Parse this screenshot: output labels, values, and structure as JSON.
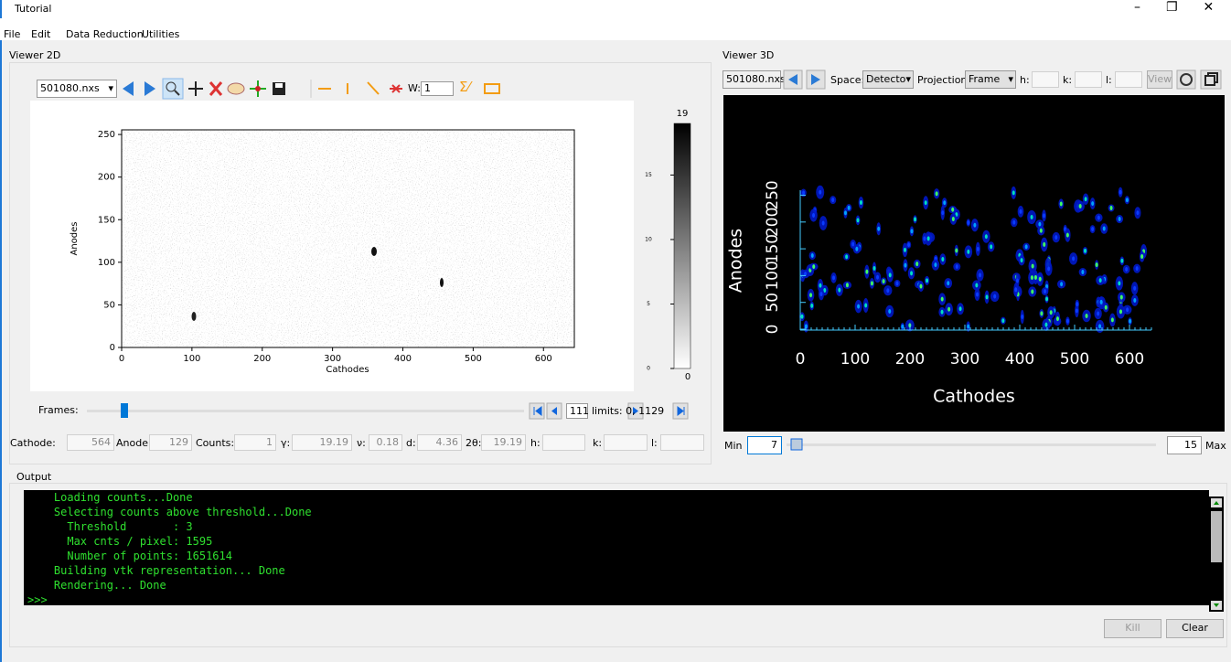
{
  "window": {
    "title": "Tutorial"
  },
  "menu": [
    "File",
    "Edit",
    "Data Reduction",
    "Utilities"
  ],
  "viewer2d": {
    "title": "Viewer 2D",
    "file": "501080.nxs",
    "width_label": "W:",
    "width_value": "1",
    "plot": {
      "xlabel": "Cathodes",
      "ylabel": "Anodes",
      "xlim": [
        0,
        640
      ],
      "ylim": [
        0,
        256
      ],
      "xticks": [
        0,
        100,
        200,
        300,
        400,
        500,
        600
      ],
      "yticks": [
        0,
        50,
        100,
        150,
        200,
        250
      ],
      "colorbar": {
        "min": 0,
        "max": 19,
        "ticks": [
          0,
          5,
          10,
          15
        ]
      }
    },
    "frames_label": "Frames:",
    "frame": "111",
    "limits": "limits: 0, 1129",
    "status": [
      {
        "label": "Cathode:",
        "value": "564"
      },
      {
        "label": "Anode:",
        "value": "129"
      },
      {
        "label": "Counts:",
        "value": "1"
      },
      {
        "label": "γ:",
        "value": "19.19"
      },
      {
        "label": "ν:",
        "value": "0.18"
      },
      {
        "label": "d:",
        "value": "4.36"
      },
      {
        "label": "2θ:",
        "value": "19.19"
      },
      {
        "label": "h:"
      },
      {
        "label": "k:"
      },
      {
        "label": "l:"
      }
    ]
  },
  "viewer3d": {
    "title": "Viewer 3D",
    "file": "501080.nxs",
    "space_label": "Space:",
    "space": "Detector",
    "projection_label": "Projection:",
    "projection": "Frame",
    "h_label": "h:",
    "k_label": "k:",
    "l_label": "l:",
    "view": "View",
    "plot": {
      "xlabel": "Cathodes",
      "ylabel": "Anodes",
      "xlim": [
        0,
        640
      ],
      "ylim": [
        0,
        256
      ],
      "xticks": [
        0,
        100,
        200,
        300,
        400,
        500,
        600
      ],
      "yticks": [
        0,
        50,
        100,
        150,
        200,
        250
      ]
    },
    "min_label": "Min",
    "min": "7",
    "max": "15",
    "max_label": "Max"
  },
  "output": {
    "title": "Output",
    "lines": [
      "    Loading counts...Done",
      "    Selecting counts above threshold...Done",
      "      Threshold       : 3",
      "      Max cnts / pixel: 1595",
      "      Number of points: 1651614",
      "    Building vtk representation... Done",
      "    Rendering... Done",
      ">>>"
    ],
    "kill": "Kill",
    "clear": "Clear"
  }
}
